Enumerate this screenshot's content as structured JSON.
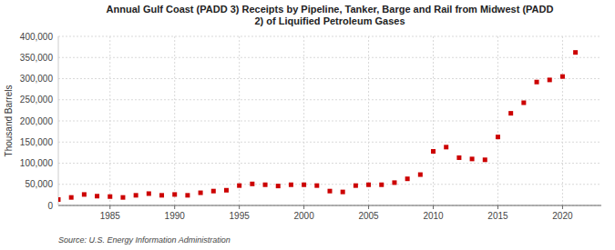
{
  "chart_data": {
    "type": "scatter",
    "title": "Annual Gulf Coast (PADD 3) Receipts by Pipeline, Tanker, Barge and Rail from Midwest (PADD\n2) of Liquified Petroleum Gases",
    "ylabel": "Thousand Barrels",
    "source": "Source: U.S. Energy Information Administration",
    "x": [
      1981,
      1982,
      1983,
      1984,
      1985,
      1986,
      1987,
      1988,
      1989,
      1990,
      1991,
      1992,
      1993,
      1994,
      1995,
      1996,
      1997,
      1998,
      1999,
      2000,
      2001,
      2002,
      2003,
      2004,
      2005,
      2006,
      2007,
      2008,
      2009,
      2010,
      2011,
      2012,
      2013,
      2014,
      2015,
      2016,
      2017,
      2018,
      2019,
      2020,
      2021
    ],
    "values": [
      14000,
      19000,
      26000,
      22000,
      21000,
      19000,
      24000,
      28000,
      24000,
      26000,
      24000,
      30000,
      34000,
      36000,
      47000,
      51000,
      49000,
      46000,
      49000,
      49000,
      47000,
      34000,
      32000,
      47000,
      49000,
      49000,
      54000,
      63000,
      73000,
      128000,
      138000,
      113000,
      110000,
      108000,
      162000,
      218000,
      243000,
      292000,
      297000,
      305000,
      362000
    ],
    "color": "#cc0000",
    "marker": "square",
    "xlim": [
      1981,
      2023
    ],
    "ylim": [
      0,
      400000
    ],
    "xticks": [
      1985,
      1990,
      1995,
      2000,
      2005,
      2010,
      2015,
      2020
    ],
    "yticks": [
      0,
      {
        "value": 50000,
        "label": "50,000"
      },
      {
        "value": 100000,
        "label": "100,000"
      },
      {
        "value": 150000,
        "label": "150,000"
      },
      {
        "value": 200000,
        "label": "200,000"
      },
      {
        "value": 250000,
        "label": "250,000"
      },
      {
        "value": 300000,
        "label": "300,000"
      },
      {
        "value": 350000,
        "label": "350,000"
      },
      {
        "value": 400000,
        "label": "400,000"
      }
    ],
    "grid": true
  }
}
